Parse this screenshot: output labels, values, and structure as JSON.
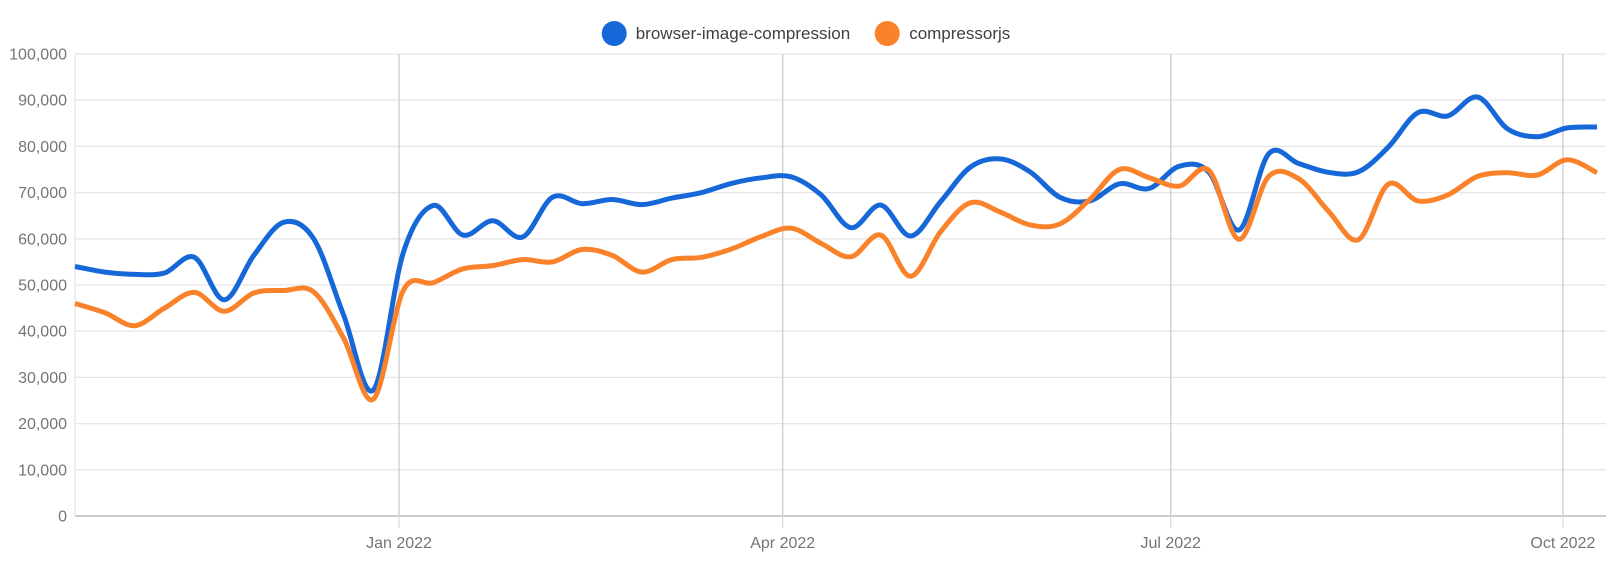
{
  "chart": {
    "legend": [
      {
        "label": "browser-image-compression",
        "color": "#1667d8"
      },
      {
        "label": "compressorjs",
        "color": "#f9822a"
      }
    ]
  },
  "chart_data": {
    "type": "line",
    "title": "",
    "xlabel": "",
    "ylabel": "",
    "x_unit": "week",
    "grid": true,
    "legend_position": "top",
    "curve": "spline",
    "ylim": [
      0,
      100000
    ],
    "y_ticks": [
      {
        "value": 0,
        "label": "0"
      },
      {
        "value": 10000,
        "label": "10,000"
      },
      {
        "value": 20000,
        "label": "20,000"
      },
      {
        "value": 30000,
        "label": "30,000"
      },
      {
        "value": 40000,
        "label": "40,000"
      },
      {
        "value": 50000,
        "label": "50,000"
      },
      {
        "value": 60000,
        "label": "60,000"
      },
      {
        "value": 70000,
        "label": "70,000"
      },
      {
        "value": 80000,
        "label": "80,000"
      },
      {
        "value": 90000,
        "label": "90,000"
      },
      {
        "value": 100000,
        "label": "100,000"
      }
    ],
    "x_ticks": [
      {
        "label": "Jan 2022",
        "date": "2022-01-01"
      },
      {
        "label": "Apr 2022",
        "date": "2022-04-01"
      },
      {
        "label": "Jul 2022",
        "date": "2022-07-01"
      },
      {
        "label": "Oct 2022",
        "date": "2022-10-01"
      }
    ],
    "x_dates": [
      "2021-10-17",
      "2021-10-24",
      "2021-10-31",
      "2021-11-07",
      "2021-11-14",
      "2021-11-21",
      "2021-11-28",
      "2021-12-05",
      "2021-12-12",
      "2021-12-19",
      "2021-12-26",
      "2022-01-02",
      "2022-01-09",
      "2022-01-16",
      "2022-01-23",
      "2022-01-30",
      "2022-02-06",
      "2022-02-13",
      "2022-02-20",
      "2022-02-27",
      "2022-03-06",
      "2022-03-13",
      "2022-03-20",
      "2022-03-27",
      "2022-04-03",
      "2022-04-10",
      "2022-04-17",
      "2022-04-24",
      "2022-05-01",
      "2022-05-08",
      "2022-05-15",
      "2022-05-22",
      "2022-05-29",
      "2022-06-05",
      "2022-06-12",
      "2022-06-19",
      "2022-06-26",
      "2022-07-03",
      "2022-07-10",
      "2022-07-17",
      "2022-07-24",
      "2022-07-31",
      "2022-08-07",
      "2022-08-14",
      "2022-08-21",
      "2022-08-28",
      "2022-09-04",
      "2022-09-11",
      "2022-09-18",
      "2022-09-25",
      "2022-10-02",
      "2022-10-09"
    ],
    "series": [
      {
        "name": "browser-image-compression",
        "color": "#1667d8",
        "values": [
          54000,
          52800,
          52300,
          52600,
          56000,
          46800,
          56500,
          63600,
          60000,
          43500,
          27300,
          57000,
          67200,
          60800,
          63900,
          60400,
          69000,
          67600,
          68500,
          67400,
          68800,
          70000,
          72000,
          73200,
          73400,
          69500,
          62400,
          67300,
          60600,
          68000,
          75500,
          77300,
          74500,
          69000,
          68200,
          71900,
          70900,
          75700,
          74400,
          61900,
          78400,
          76300,
          74400,
          74500,
          79800,
          87300,
          86600,
          90700,
          83800,
          82100,
          84000,
          84200
        ]
      },
      {
        "name": "compressorjs",
        "color": "#f9822a",
        "values": [
          46000,
          44000,
          41200,
          45000,
          48400,
          44300,
          48300,
          48800,
          48500,
          38500,
          25300,
          48800,
          50500,
          53500,
          54200,
          55500,
          55000,
          57700,
          56400,
          52800,
          55500,
          56000,
          57800,
          60500,
          62300,
          59000,
          56100,
          60800,
          51900,
          61500,
          67800,
          65800,
          63000,
          63200,
          68500,
          75000,
          73200,
          71400,
          74800,
          59900,
          73500,
          73000,
          66000,
          59800,
          71800,
          68200,
          69500,
          73500,
          74300,
          73800,
          77100,
          74300
        ]
      }
    ]
  },
  "colors": {
    "background": "#ffffff",
    "grid": "#e6e6e6",
    "axis_line": "#ababab",
    "tick_line": "#cccccc",
    "tick_below_axis": "#dddddd",
    "axis_text": "#757575",
    "legend_text": "#3d3f42"
  }
}
